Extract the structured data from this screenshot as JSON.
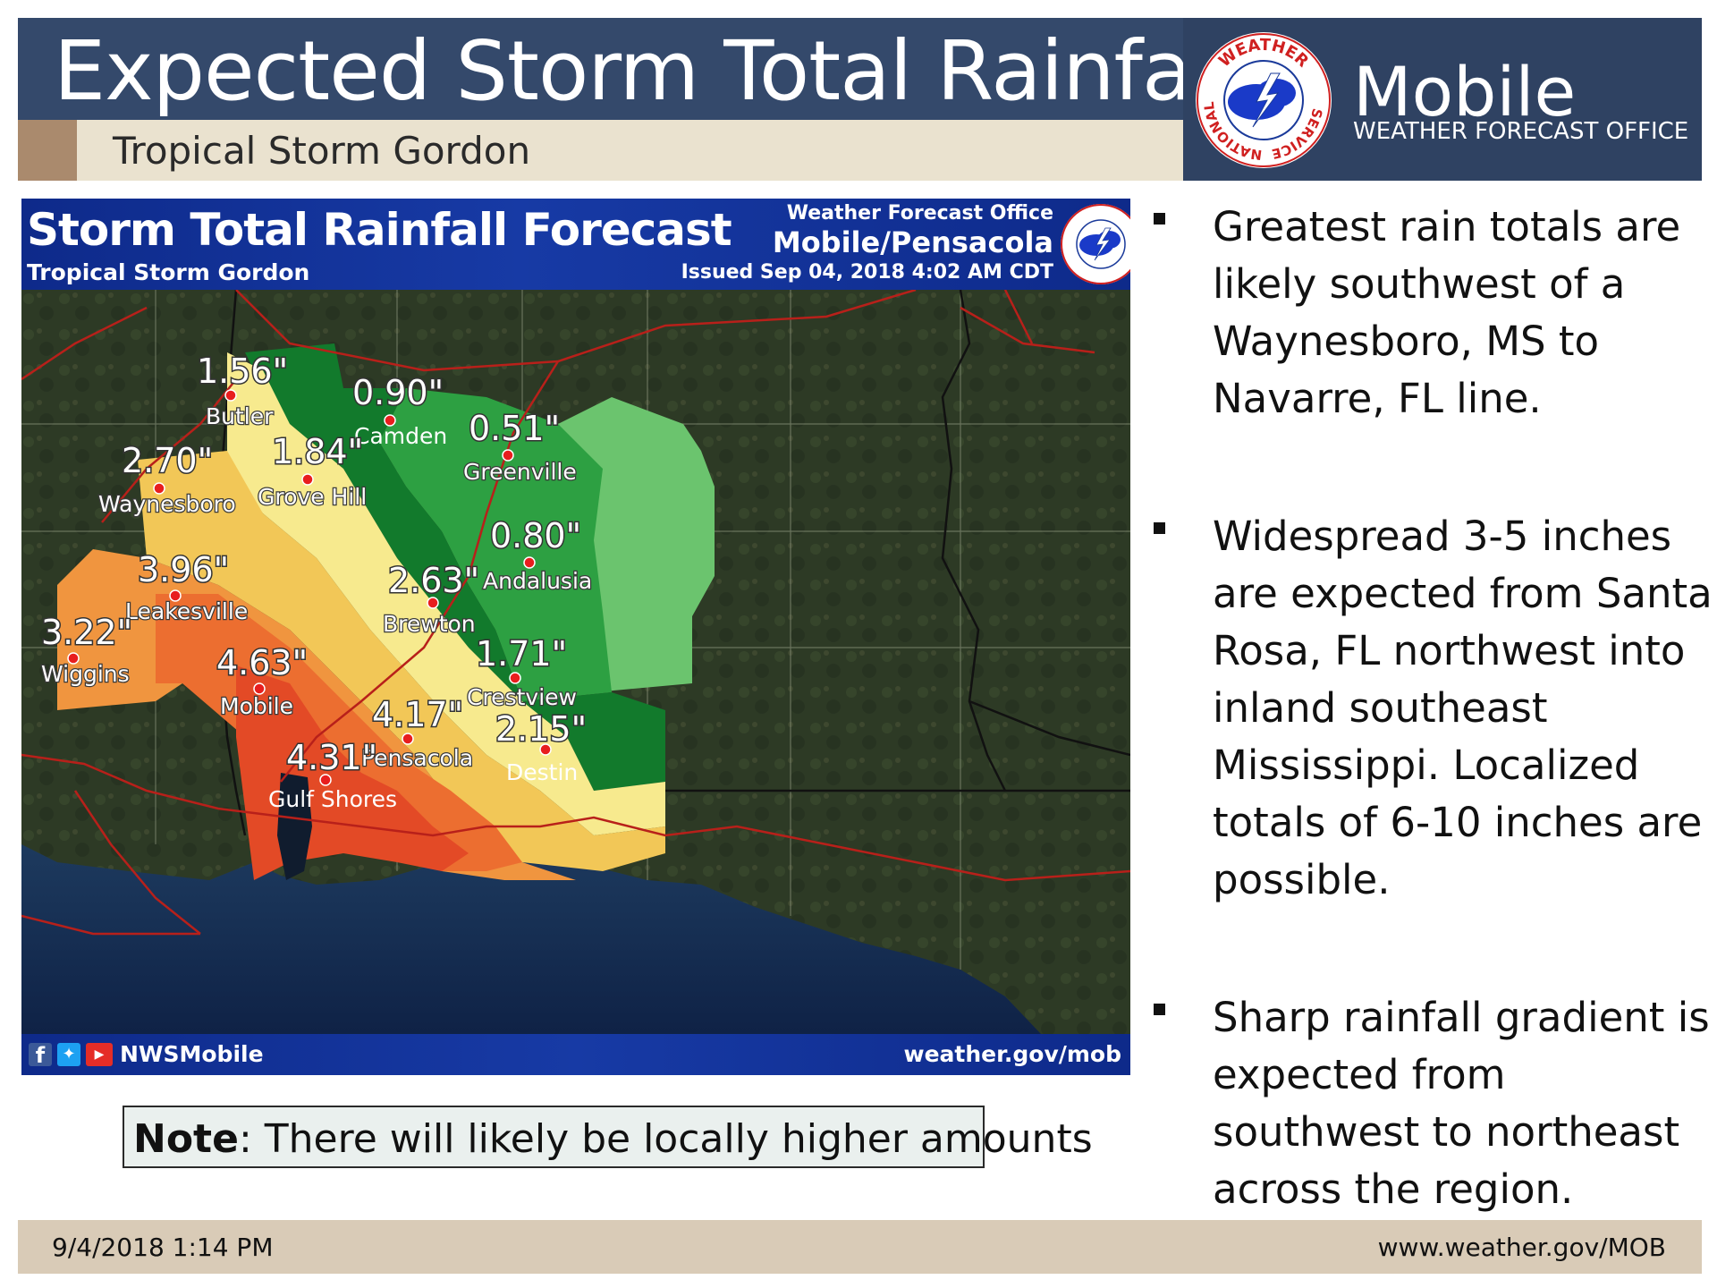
{
  "header": {
    "title": "Expected Storm Total Rainfall",
    "subtitle": "Tropical Storm Gordon",
    "office_name": "Mobile",
    "office_subtitle": "WEATHER FORECAST OFFICE",
    "logo_text_top": "WEATHER",
    "logo_text_left": "NATIONAL",
    "logo_text_right": "SERVICE"
  },
  "map": {
    "title": "Storm Total Rainfall Forecast",
    "subtitle": "Tropical Storm Gordon",
    "office_label": "Weather Forecast Office",
    "office_name": "Mobile/Pensacola",
    "issued": "Issued Sep 04, 2018 4:02 AM CDT",
    "social_handle": "NWSMobile",
    "website": "weather.gov/mob",
    "social_icons": [
      "facebook-icon",
      "twitter-icon",
      "youtube-icon"
    ],
    "colors": {
      "light_green": "#6bc46e",
      "mid_green": "#2da042",
      "dark_green": "#127a2c",
      "yellow_light": "#f7ea8e",
      "yellow": "#f2c757",
      "orange": "#f0953f",
      "orange_red": "#ec6e30",
      "red": "#e34a26"
    },
    "points": [
      {
        "city": "Butler",
        "amount": "1.56\""
      },
      {
        "city": "Camden",
        "amount": "0.90\""
      },
      {
        "city": "Greenville",
        "amount": "0.51\""
      },
      {
        "city": "Waynesboro",
        "amount": "2.70\""
      },
      {
        "city": "Grove Hill",
        "amount": "1.84\""
      },
      {
        "city": "Andalusia",
        "amount": "0.80\""
      },
      {
        "city": "Leakesville",
        "amount": "3.96\""
      },
      {
        "city": "Brewton",
        "amount": "2.63\""
      },
      {
        "city": "Wiggins",
        "amount": "3.22\""
      },
      {
        "city": "Crestview",
        "amount": "1.71\""
      },
      {
        "city": "Mobile",
        "amount": "4.63\""
      },
      {
        "city": "Pensacola",
        "amount": "4.17\""
      },
      {
        "city": "Destin",
        "amount": "2.15\""
      },
      {
        "city": "Gulf Shores",
        "amount": "4.31\""
      }
    ]
  },
  "note": {
    "label": "Note",
    "text": ": There will likely be locally higher amounts"
  },
  "bullets": [
    "Greatest rain totals are likely southwest of a Waynesboro, MS to Navarre, FL line.",
    "Widespread 3-5 inches are expected from Santa Rosa, FL northwest into inland southeast Mississippi.  Localized totals of 6-10 inches are possible.",
    "Sharp rainfall gradient is expected from southwest to northeast across the region."
  ],
  "footer": {
    "date": "9/4/2018 1:14 PM",
    "url": "www.weather.gov/MOB"
  }
}
